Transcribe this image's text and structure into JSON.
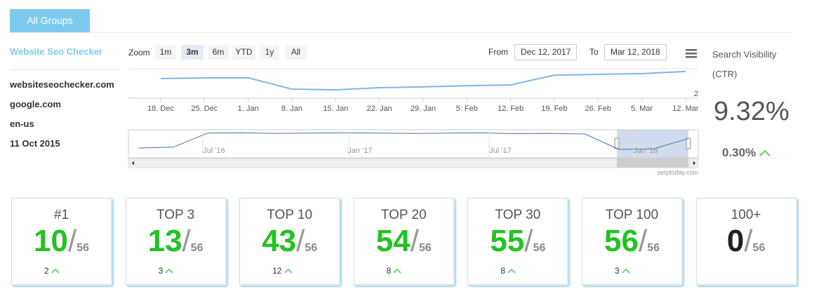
{
  "button": "All Groups",
  "sidebar": {
    "title": "Website Seo Checker",
    "items": [
      "websiteseochecker.com",
      "google.com",
      "en-us",
      "11 Oct 2015"
    ]
  },
  "zoom": {
    "label": "Zoom",
    "options": [
      "1m",
      "3m",
      "6m",
      "YTD",
      "1y",
      "All"
    ],
    "selected": 1
  },
  "range": {
    "from_label": "From",
    "from": "Dec 12, 2017",
    "to_label": "To",
    "to": "Mar 12, 2018"
  },
  "chart_data": {
    "type": "line",
    "categories": [
      "18. Dec",
      "25. Dec",
      "1. Jan",
      "8. Jan",
      "15. Jan",
      "22. Jan",
      "29. Jan",
      "5. Feb",
      "12. Feb",
      "19. Feb",
      "26. Feb",
      "5. Mar",
      "12. Mar"
    ],
    "values": [
      2.6,
      2.63,
      2.63,
      2.17,
      2.14,
      2.23,
      2.26,
      2.31,
      2.34,
      2.74,
      2.77,
      2.8,
      2.89
    ],
    "color": "#7cb5ec",
    "ylim": [
      1.8,
      3.0
    ],
    "yticks": [
      2
    ],
    "navigator": {
      "labels": [
        "Jul '16",
        "Jan '17",
        "Jul '17",
        "Jan '18"
      ],
      "values": [
        3.5,
        3.8,
        8.8,
        8.9,
        8.7,
        8.8,
        8.9,
        8.8,
        8.7,
        8.8,
        8.9,
        8.6,
        8.7,
        8.5,
        3.0,
        3.2,
        6.8
      ],
      "ylim": [
        0,
        10
      ],
      "color": "#4572a7"
    },
    "credit": "serptoday.com"
  },
  "visibility": {
    "title": "Search Visibility (CTR)",
    "value": "9.32%",
    "change": "0.30%"
  },
  "cards": [
    {
      "title": "#1",
      "value": 10,
      "total": 56,
      "change": 2,
      "color": "#22c322"
    },
    {
      "title": "TOP 3",
      "value": 13,
      "total": 56,
      "change": 3,
      "color": "#22c322"
    },
    {
      "title": "TOP 10",
      "value": 43,
      "total": 56,
      "change": 12,
      "color": "#22c322"
    },
    {
      "title": "TOP 20",
      "value": 54,
      "total": 56,
      "change": 8,
      "color": "#22c322"
    },
    {
      "title": "TOP 30",
      "value": 55,
      "total": 56,
      "change": 8,
      "color": "#22c322"
    },
    {
      "title": "TOP 100",
      "value": 56,
      "total": 56,
      "change": 3,
      "color": "#22c322"
    },
    {
      "title": "100+",
      "value": 0,
      "total": 56,
      "color": "#222222"
    }
  ]
}
